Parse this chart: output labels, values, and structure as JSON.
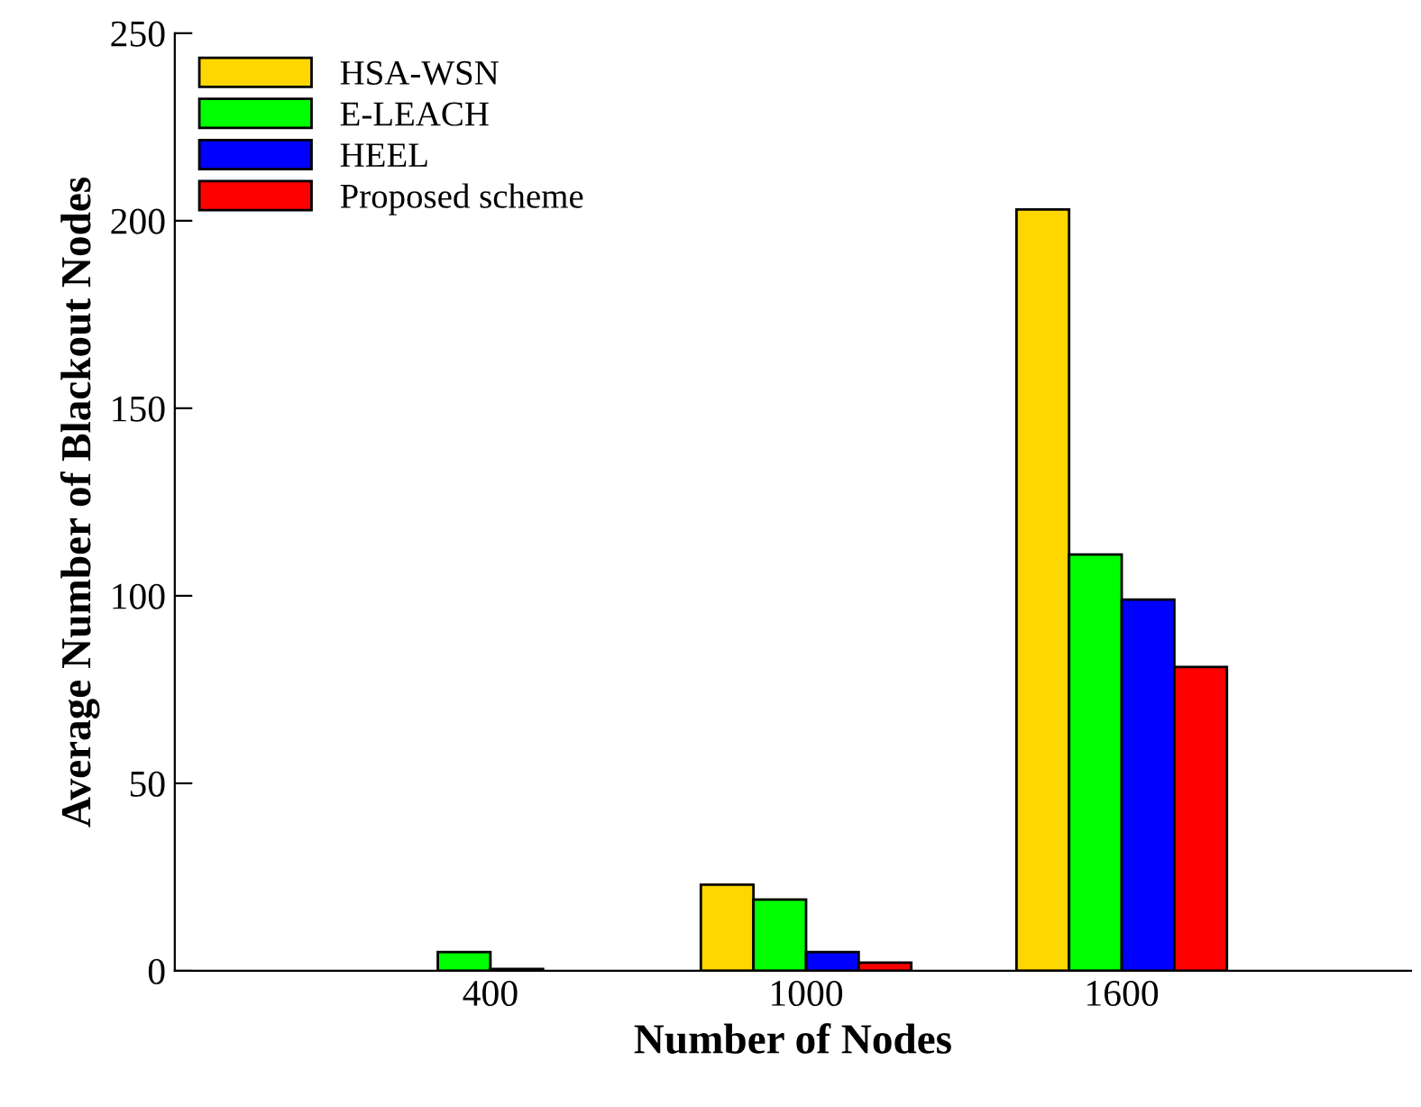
{
  "chart_data": {
    "type": "bar",
    "xlabel": "Number of Nodes",
    "ylabel": "Average Number of Blackout Nodes",
    "x": [
      400,
      1000,
      1600
    ],
    "series": [
      {
        "name": "HSA-WSN",
        "color": "#ffd700",
        "values": [
          null,
          23,
          203
        ]
      },
      {
        "name": "E-LEACH",
        "color": "#00ff00",
        "values": [
          5,
          19,
          111
        ]
      },
      {
        "name": "HEEL",
        "color": "#0000ff",
        "values": [
          0.5,
          5,
          99
        ]
      },
      {
        "name": "Proposed scheme",
        "color": "#ff0000",
        "values": [
          null,
          2.2,
          81
        ]
      }
    ],
    "xlim": [
      -200,
      2150
    ],
    "xticks": [
      400,
      1000,
      1600
    ],
    "ylim": [
      0,
      250
    ],
    "yticks": [
      0,
      50,
      100,
      150,
      200,
      250
    ],
    "grid": false,
    "legend": "top left"
  }
}
